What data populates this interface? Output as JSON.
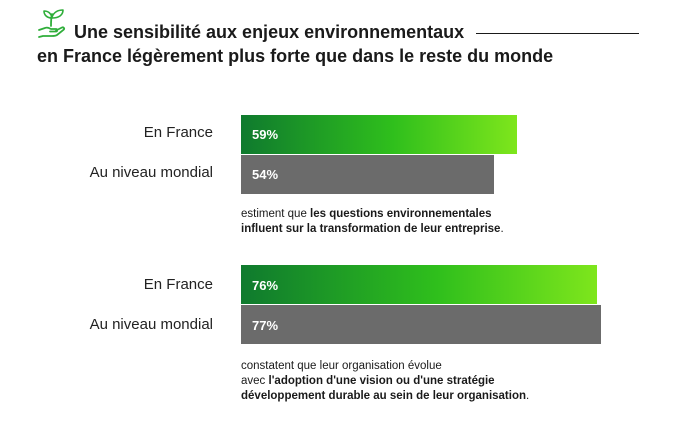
{
  "title": {
    "line1": "Une sensibilité aux enjeux environnementaux",
    "line2": "en France légèrement plus forte que dans le reste du monde"
  },
  "icon": "plant-in-hand-icon",
  "colors": {
    "france_gradient_start": "#0f7a2e",
    "france_gradient_end": "#7ee61c",
    "world": "#6b6b6b"
  },
  "chart_data": [
    {
      "type": "bar",
      "orientation": "horizontal",
      "categories": [
        "En France",
        "Au niveau mondial"
      ],
      "values": [
        59,
        54
      ],
      "value_labels": [
        "59%",
        "54%"
      ],
      "unit": "%",
      "caption": {
        "normal_1": "estiment que ",
        "bold_1": "les questions environnementales",
        "bold_2": "influent sur la transformation de leur entreprise",
        "normal_2": "."
      }
    },
    {
      "type": "bar",
      "orientation": "horizontal",
      "categories": [
        "En France",
        "Au niveau mondial"
      ],
      "values": [
        76,
        77
      ],
      "value_labels": [
        "76%",
        "77%"
      ],
      "unit": "%",
      "caption": {
        "normal_1": "constatent que leur organisation évolue",
        "normal_2": "avec ",
        "bold_1": "l'adoption d'une vision ou d'une stratégie",
        "bold_2": "développement durable au sein de leur organisation",
        "normal_3": "."
      }
    }
  ]
}
